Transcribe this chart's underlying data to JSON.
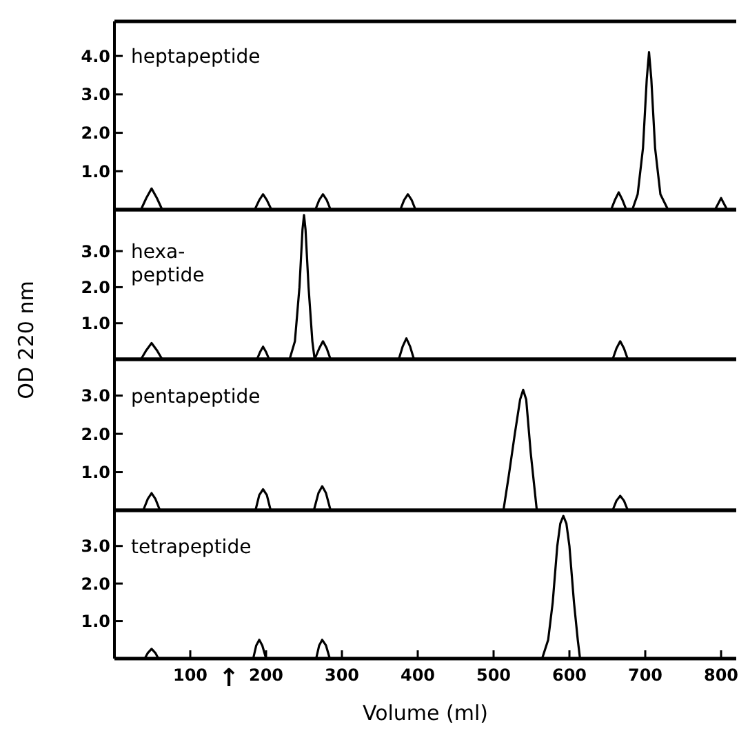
{
  "chart_data": [
    {
      "type": "line",
      "title": "heptapeptide",
      "xlim": [
        0,
        820
      ],
      "ylim": [
        0,
        4.9
      ],
      "yticks": [
        {
          "value": 1,
          "label": "1.0"
        },
        {
          "value": 2,
          "label": "2.0"
        },
        {
          "value": 3,
          "label": "3.0"
        },
        {
          "value": 4,
          "label": "4.0"
        }
      ],
      "tick_labels": "y",
      "color": "#000000",
      "x": [
        0,
        35,
        42,
        49,
        56,
        63,
        185,
        191,
        196,
        201,
        207,
        265,
        270,
        275,
        280,
        285,
        377,
        382,
        387,
        392,
        397,
        655,
        660,
        665,
        670,
        675,
        683,
        690,
        697,
        702,
        705,
        708,
        713,
        720,
        730,
        792,
        796,
        800,
        804,
        808,
        820
      ],
      "values": [
        0,
        0,
        0.3,
        0.55,
        0.3,
        0,
        0,
        0.25,
        0.4,
        0.25,
        0,
        0,
        0.25,
        0.4,
        0.25,
        0,
        0,
        0.25,
        0.4,
        0.25,
        0,
        0,
        0.25,
        0.45,
        0.25,
        0,
        0,
        0.4,
        1.6,
        3.4,
        4.1,
        3.4,
        1.6,
        0.4,
        0,
        0,
        0.15,
        0.3,
        0.15,
        0,
        0
      ]
    },
    {
      "type": "line",
      "title": "hexa-\npeptide",
      "ylabel": "OD 220 nm",
      "xlim": [
        0,
        820
      ],
      "ylim": [
        0,
        4.15
      ],
      "yticks": [
        {
          "value": 1,
          "label": "1.0"
        },
        {
          "value": 2,
          "label": "2.0"
        },
        {
          "value": 3,
          "label": "3.0"
        }
      ],
      "tick_labels": "y",
      "color": "#000000",
      "x": [
        0,
        35,
        42,
        49,
        56,
        63,
        188,
        192,
        196,
        200,
        204,
        231,
        238,
        244,
        248,
        250,
        252,
        256,
        261,
        264,
        270,
        275,
        280,
        285,
        375,
        380,
        385,
        390,
        395,
        657,
        662,
        667,
        672,
        677,
        820
      ],
      "values": [
        0,
        0,
        0.25,
        0.45,
        0.25,
        0,
        0,
        0.2,
        0.35,
        0.2,
        0,
        0,
        0.5,
        2.0,
        3.6,
        4.0,
        3.6,
        2.0,
        0.5,
        0,
        0.3,
        0.5,
        0.3,
        0,
        0,
        0.35,
        0.58,
        0.35,
        0,
        0,
        0.3,
        0.5,
        0.3,
        0,
        0
      ]
    },
    {
      "type": "line",
      "title": "pentapeptide",
      "xlim": [
        0,
        820
      ],
      "ylim": [
        0,
        3.95
      ],
      "yticks": [
        {
          "value": 1,
          "label": "1.0"
        },
        {
          "value": 2,
          "label": "2.0"
        },
        {
          "value": 3,
          "label": "3.0"
        }
      ],
      "tick_labels": "y",
      "color": "#000000",
      "x": [
        0,
        38,
        44,
        49,
        54,
        60,
        186,
        191,
        196,
        201,
        206,
        263,
        269,
        274,
        279,
        285,
        513,
        520,
        528,
        535,
        539,
        543,
        549,
        557,
        657,
        662,
        667,
        672,
        677,
        820
      ],
      "values": [
        0,
        0,
        0.3,
        0.45,
        0.3,
        0,
        0,
        0.4,
        0.55,
        0.4,
        0,
        0,
        0.45,
        0.63,
        0.45,
        0,
        0,
        0.9,
        2.0,
        2.9,
        3.15,
        2.9,
        1.5,
        0,
        0,
        0.25,
        0.38,
        0.25,
        0,
        0
      ]
    },
    {
      "type": "line",
      "title": "tetrapeptide",
      "xlabel": "Volume  (ml)",
      "xlim": [
        0,
        820
      ],
      "xticks": [
        100,
        200,
        300,
        400,
        500,
        600,
        700,
        800
      ],
      "ylim": [
        0,
        3.95
      ],
      "yticks": [
        {
          "value": 1,
          "label": "1.0"
        },
        {
          "value": 2,
          "label": "2.0"
        },
        {
          "value": 3,
          "label": "3.0"
        }
      ],
      "color": "#000000",
      "annotations": [
        "↑"
      ],
      "x": [
        0,
        40,
        44,
        49,
        54,
        58,
        183,
        187,
        191,
        195,
        200,
        266,
        270,
        274,
        279,
        284,
        564,
        572,
        578,
        584,
        588,
        592,
        596,
        600,
        606,
        611,
        614,
        820
      ],
      "values": [
        0,
        0,
        0.15,
        0.26,
        0.15,
        0,
        0,
        0.35,
        0.5,
        0.35,
        0,
        0,
        0.35,
        0.5,
        0.35,
        0,
        0,
        0.5,
        1.5,
        3.0,
        3.6,
        3.8,
        3.6,
        3.0,
        1.5,
        0.5,
        0,
        0
      ]
    }
  ]
}
